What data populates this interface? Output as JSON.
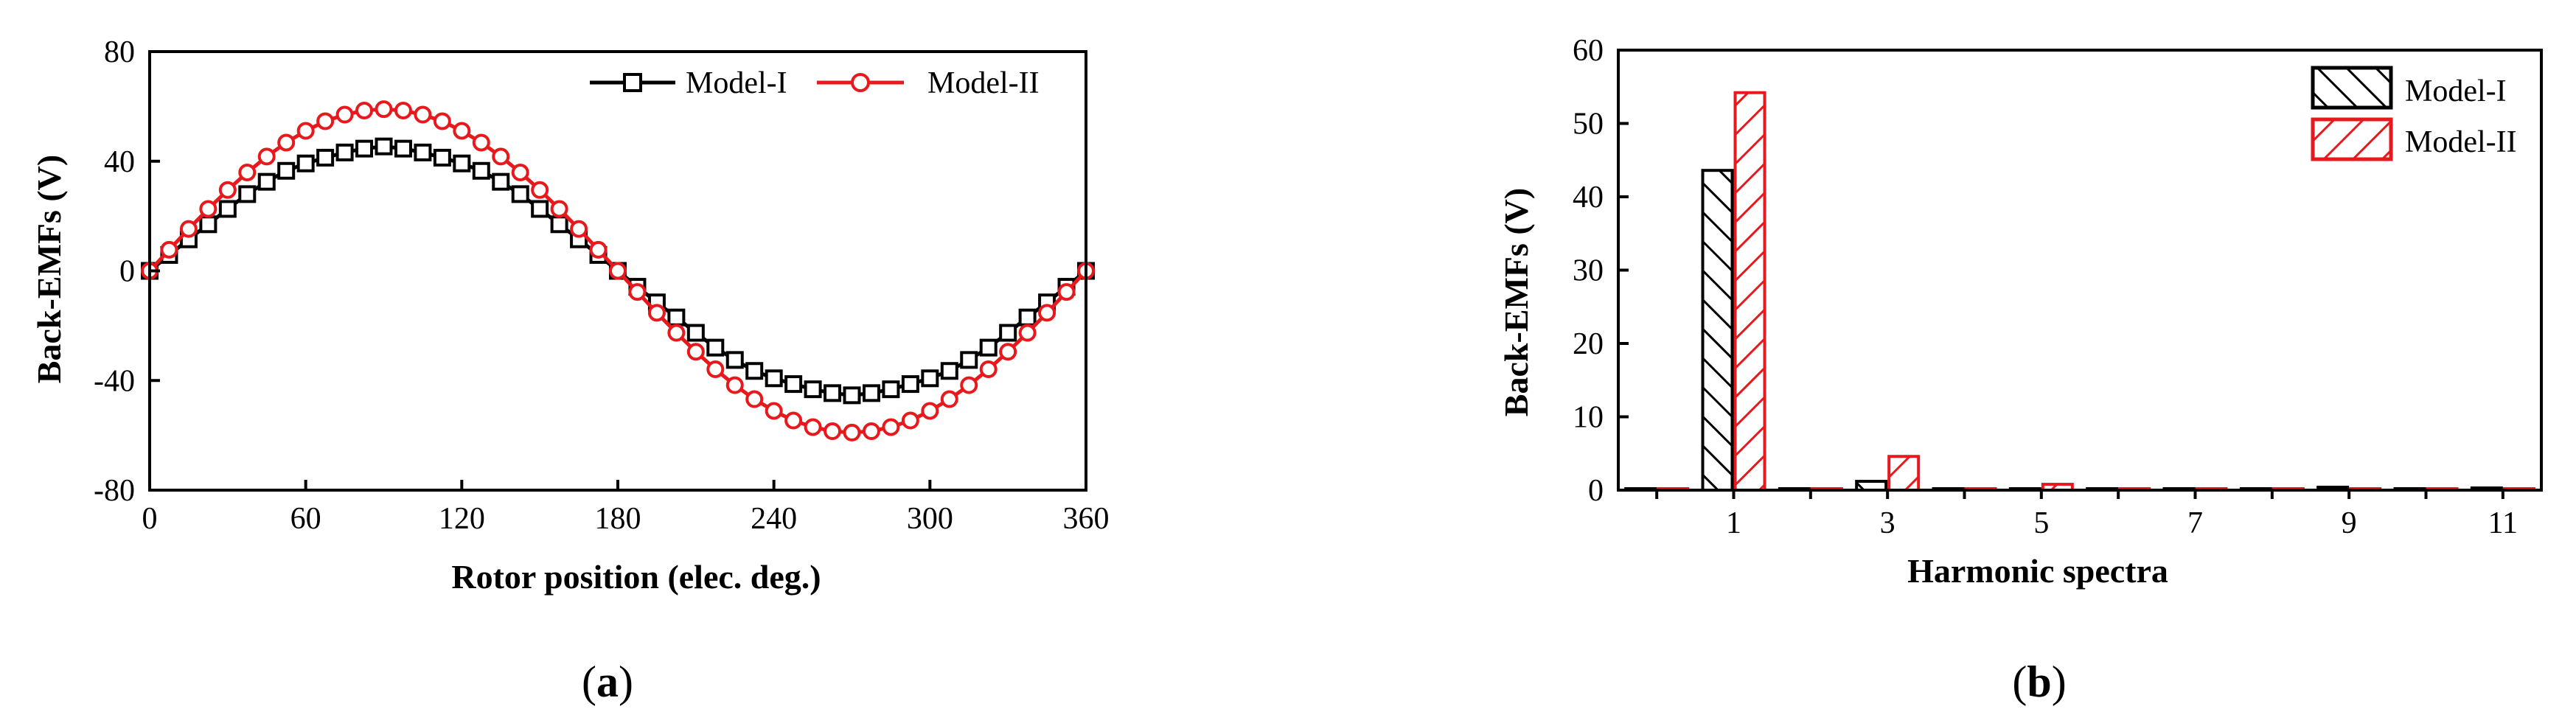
{
  "colors": {
    "model1": "#000000",
    "model2": "#e8191d"
  },
  "chart_data": [
    {
      "panel": "a",
      "type": "line",
      "xlabel": "Rotor position (elec. deg.)",
      "ylabel": "Back-EMFs (V)",
      "xlim": [
        0,
        360
      ],
      "ylim": [
        -80,
        80
      ],
      "xticks": [
        "0",
        "60",
        "120",
        "180",
        "240",
        "300",
        "360"
      ],
      "yticks": [
        "-80",
        "-40",
        "0",
        "40",
        "80"
      ],
      "legend_position": "top-right",
      "series": [
        {
          "name": "Model-I",
          "marker": "square",
          "x": [
            0,
            7.5,
            15,
            22.5,
            30,
            37.5,
            45,
            52.5,
            60,
            67.5,
            75,
            82.5,
            90,
            97.5,
            105,
            112.5,
            120,
            127.5,
            135,
            142.5,
            150,
            157.5,
            165,
            172.5,
            180,
            187.5,
            195,
            202.5,
            210,
            217.5,
            225,
            232.5,
            240,
            247.5,
            255,
            262.5,
            270,
            277.5,
            285,
            292.5,
            300,
            307.5,
            315,
            322.5,
            330,
            337.5,
            345,
            352.5,
            360
          ],
          "y": [
            0,
            5.8,
            11.5,
            17,
            22.6,
            28,
            32.5,
            36.5,
            39.2,
            41.3,
            43.2,
            44.6,
            45.4,
            44.6,
            43.2,
            41.3,
            39.2,
            36.5,
            32.5,
            28,
            22.6,
            17,
            11.5,
            5.8,
            0,
            -5.8,
            -11.5,
            -17,
            -22.6,
            -28,
            -32.5,
            -36.5,
            -39.2,
            -41.3,
            -43.2,
            -44.6,
            -45.4,
            -44.6,
            -43.2,
            -41.3,
            -39.2,
            -36.5,
            -32.5,
            -28,
            -22.6,
            -17,
            -11.5,
            -5.8,
            0
          ]
        },
        {
          "name": "Model-II",
          "marker": "circle",
          "x": [
            0,
            7.5,
            15,
            22.5,
            30,
            37.5,
            45,
            52.5,
            60,
            67.5,
            75,
            82.5,
            90,
            97.5,
            105,
            112.5,
            120,
            127.5,
            135,
            142.5,
            150,
            157.5,
            165,
            172.5,
            180,
            187.5,
            195,
            202.5,
            210,
            217.5,
            225,
            232.5,
            240,
            247.5,
            255,
            262.5,
            270,
            277.5,
            285,
            292.5,
            300,
            307.5,
            315,
            322.5,
            330,
            337.5,
            345,
            352.5,
            360
          ],
          "y": [
            0,
            7.7,
            15.3,
            22.6,
            29.5,
            35.9,
            41.7,
            46.8,
            51.1,
            54.6,
            57,
            58.5,
            59,
            58.5,
            57,
            54.6,
            51.1,
            46.8,
            41.7,
            35.9,
            29.5,
            22.6,
            15.3,
            7.7,
            0,
            -7.7,
            -15.3,
            -22.6,
            -29.5,
            -35.9,
            -41.7,
            -46.8,
            -51.1,
            -54.6,
            -57,
            -58.5,
            -59,
            -58.5,
            -57,
            -54.6,
            -51.1,
            -46.8,
            -41.7,
            -35.9,
            -29.5,
            -22.6,
            -15.3,
            -7.7,
            0
          ]
        }
      ]
    },
    {
      "panel": "b",
      "type": "bar",
      "xlabel": "Harmonic spectra",
      "ylabel": "Back-EMFs (V)",
      "ylim": [
        0,
        60
      ],
      "xlim": [
        -0.5,
        11.5
      ],
      "xticks": [
        "1",
        "3",
        "5",
        "7",
        "9",
        "11"
      ],
      "yticks": [
        "0",
        "10",
        "20",
        "30",
        "40",
        "50",
        "60"
      ],
      "legend_position": "top-right",
      "categories": [
        0,
        1,
        2,
        3,
        4,
        5,
        6,
        7,
        8,
        9,
        10,
        11
      ],
      "series": [
        {
          "name": "Model-I",
          "pattern": "hatch-right",
          "values": [
            0,
            43.6,
            0,
            1.2,
            0,
            0.1,
            0,
            0.1,
            0,
            0.4,
            0,
            0.3
          ]
        },
        {
          "name": "Model-II",
          "pattern": "hatch-left",
          "values": [
            0,
            54.2,
            0,
            4.6,
            0,
            0.8,
            0,
            0.2,
            0,
            0.1,
            0,
            0.2
          ]
        }
      ]
    }
  ],
  "captions": {
    "a": {
      "open": "(",
      "letter": "a",
      "close": ")"
    },
    "b": {
      "open": "(",
      "letter": "b",
      "close": ")"
    }
  }
}
